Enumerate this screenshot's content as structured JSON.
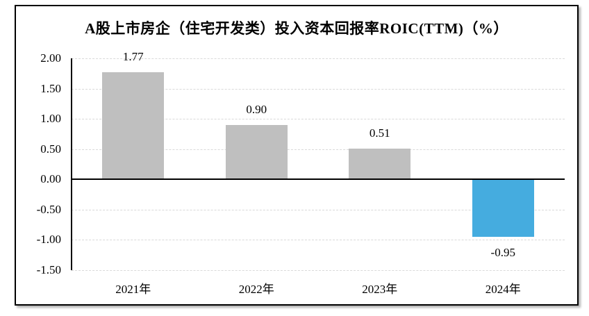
{
  "chart_data": {
    "type": "bar",
    "title": "A股上市房企（住宅开发类）投入资本回报率ROIC(TTM)（%）",
    "categories": [
      "2021年",
      "2022年",
      "2023年",
      "2024年"
    ],
    "values": [
      1.77,
      0.9,
      0.51,
      -0.95
    ],
    "value_labels": [
      "1.77",
      "0.90",
      "0.51",
      "-0.95"
    ],
    "xlabel": "",
    "ylabel": "",
    "ylim": [
      -1.5,
      2.0
    ],
    "yticks": [
      {
        "value": 2.0,
        "label": "2.00"
      },
      {
        "value": 1.5,
        "label": "1.50"
      },
      {
        "value": 1.0,
        "label": "1.00"
      },
      {
        "value": 0.5,
        "label": "0.50"
      },
      {
        "value": 0.0,
        "label": "0.00"
      },
      {
        "value": -0.5,
        "label": "-0.50"
      },
      {
        "value": -1.0,
        "label": "-1.00"
      },
      {
        "value": -1.5,
        "label": "-1.50"
      }
    ],
    "grid": "horizontal-dashed",
    "legend": "none",
    "bar_colors": [
      "#BFBFBF",
      "#BFBFBF",
      "#BFBFBF",
      "#45ACDF"
    ]
  },
  "colors": {
    "positive_bar": "#BFBFBF",
    "negative_bar": "#45ACDF",
    "gridline": "#D9D9D9",
    "axis": "#000000",
    "panel_border": "#000000",
    "background": "#FFFFFF",
    "text": "#000000"
  }
}
